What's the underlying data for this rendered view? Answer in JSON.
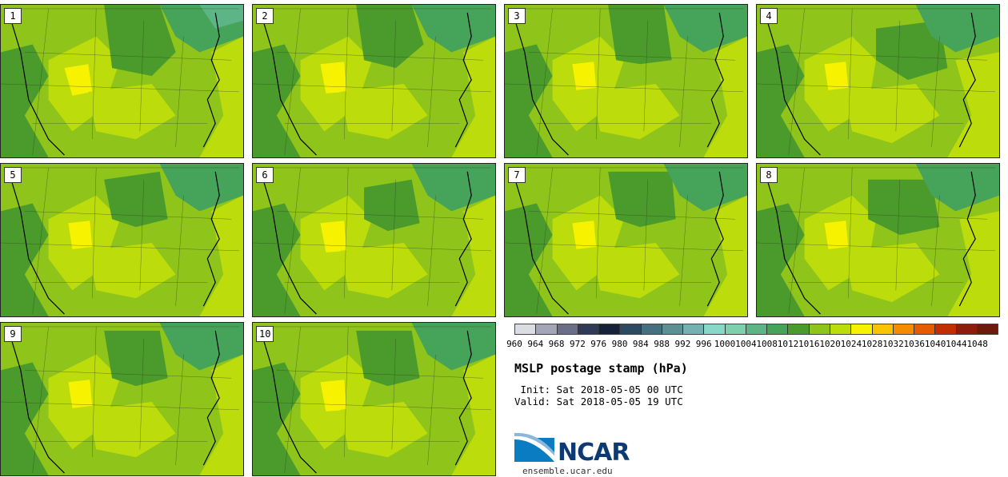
{
  "stamps": [
    {
      "label": "1"
    },
    {
      "label": "2"
    },
    {
      "label": "3"
    },
    {
      "label": "4"
    },
    {
      "label": "5"
    },
    {
      "label": "6"
    },
    {
      "label": "7"
    },
    {
      "label": "8"
    },
    {
      "label": "9"
    },
    {
      "label": "10"
    }
  ],
  "colorbar": {
    "ticks": [
      "960",
      "964",
      "968",
      "972",
      "976",
      "980",
      "984",
      "988",
      "992",
      "996",
      "1000",
      "1004",
      "1008",
      "1012",
      "1016",
      "1020",
      "1024",
      "1028",
      "1032",
      "1036",
      "1040",
      "1044",
      "1048"
    ],
    "colors": [
      "#dcdde3",
      "#a3a6b6",
      "#6a6f87",
      "#2f3a56",
      "#15223a",
      "#2c4a62",
      "#44707f",
      "#5c9093",
      "#75b1b0",
      "#88d8c8",
      "#7ecfad",
      "#5db486",
      "#46a35a",
      "#4a9a2c",
      "#8fc41a",
      "#bcdc0c",
      "#f7f300",
      "#f9c300",
      "#f58c00",
      "#e65a00",
      "#c22e00",
      "#8e1c0c",
      "#6b1a0c"
    ]
  },
  "title": "MSLP postage stamp (hPa)",
  "init_line": " Init: Sat 2018-05-05 00 UTC",
  "valid_line": "Valid: Sat 2018-05-05 19 UTC",
  "logo_text": "NCAR",
  "site": "ensemble.ucar.edu"
}
